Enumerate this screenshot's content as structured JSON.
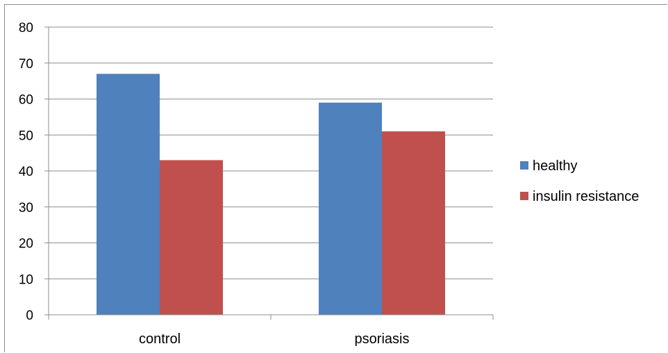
{
  "chart_data": {
    "type": "bar",
    "categories": [
      "control",
      "psoriasis"
    ],
    "series": [
      {
        "name": "healthy",
        "values": [
          67,
          59
        ],
        "color": "#4F81BD"
      },
      {
        "name": "insulin resistance",
        "values": [
          43,
          51
        ],
        "color": "#C0504D"
      }
    ],
    "ylim": [
      0,
      80
    ],
    "yticks": [
      0,
      10,
      20,
      30,
      40,
      50,
      60,
      70,
      80
    ],
    "grid": true,
    "legend": "right"
  }
}
